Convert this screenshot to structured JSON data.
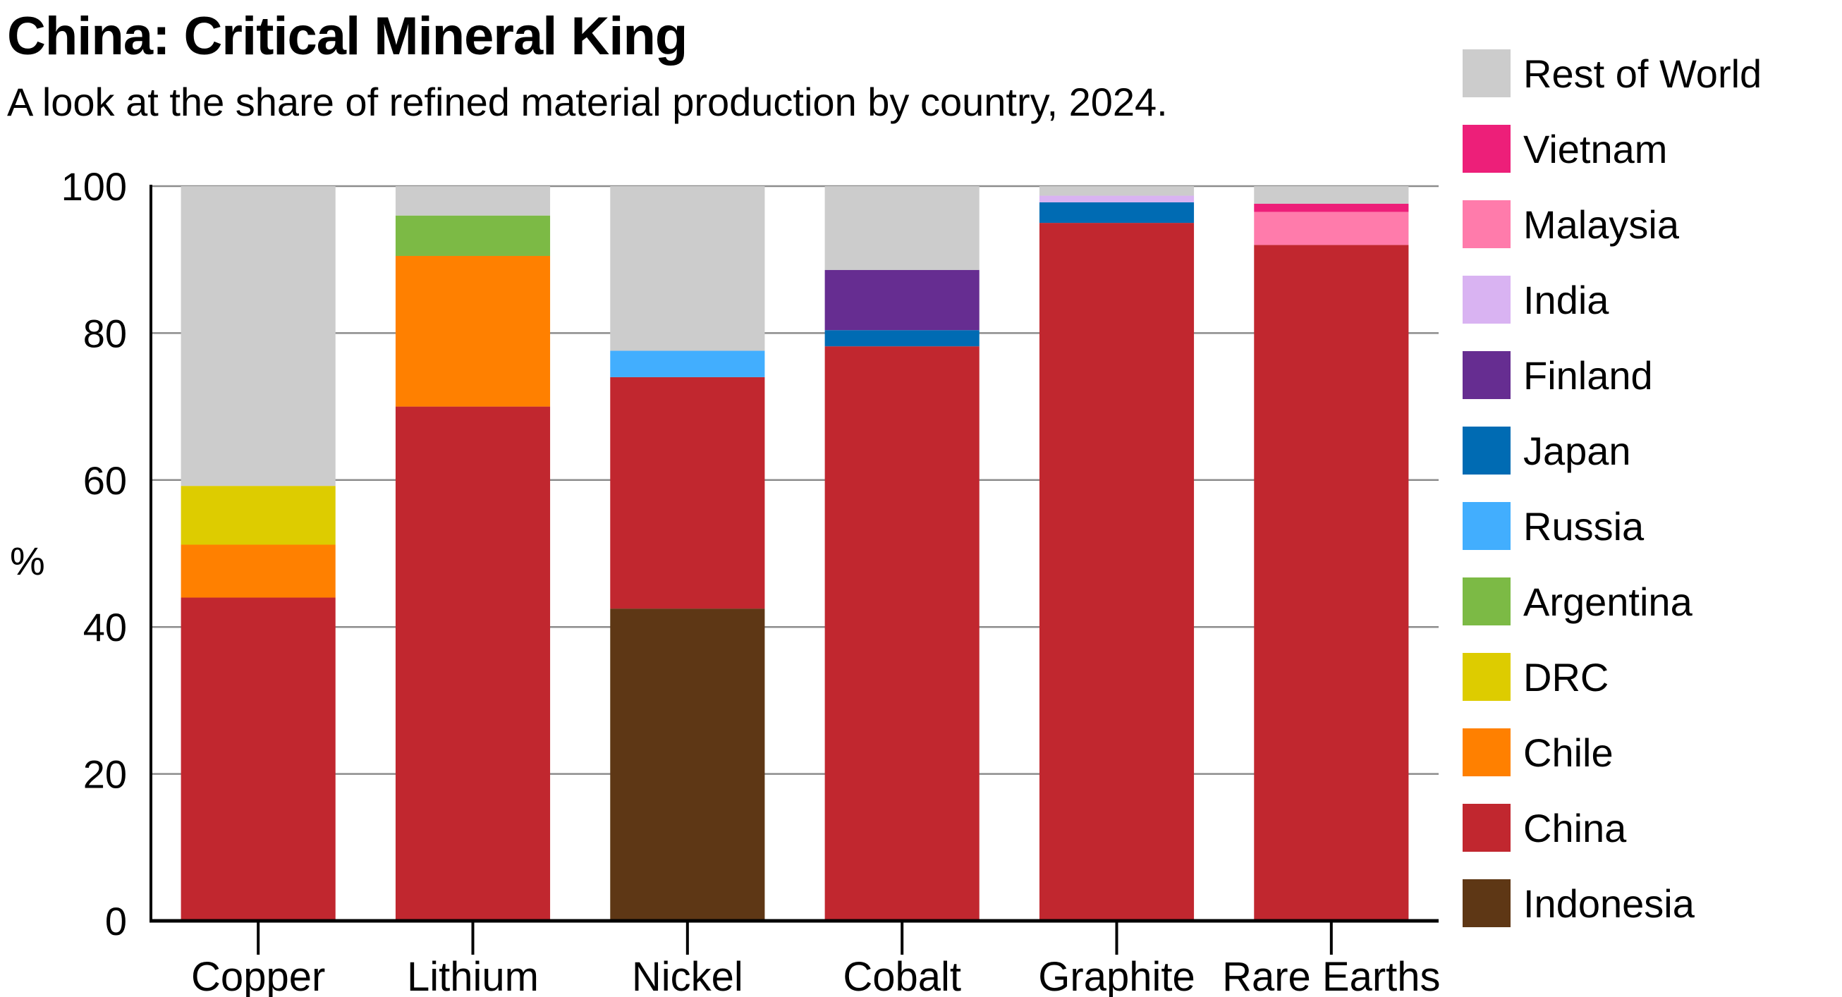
{
  "chart_data": {
    "type": "bar",
    "stacked": true,
    "title": "China: Critical Mineral King",
    "subtitle": "A look at the share of refined material production by country, 2024.",
    "xlabel": "",
    "ylabel": "%",
    "ylim": [
      0,
      100
    ],
    "yticks": [
      0,
      20,
      40,
      60,
      80,
      100
    ],
    "grid": true,
    "legend_position": "right",
    "categories": [
      "Copper",
      "Lithium",
      "Nickel",
      "Cobalt",
      "Graphite",
      "Rare Earths"
    ],
    "series": [
      {
        "name": "Indonesia",
        "color": "#5e3715",
        "values": [
          0,
          0,
          42.5,
          0,
          0,
          0
        ]
      },
      {
        "name": "China",
        "color": "#c1272f",
        "values": [
          44.0,
          70.0,
          31.5,
          78.2,
          95.0,
          92.0
        ]
      },
      {
        "name": "Chile",
        "color": "#ff8000",
        "values": [
          7.2,
          20.5,
          0,
          0,
          0,
          0
        ]
      },
      {
        "name": "DRC",
        "color": "#ddcc00",
        "values": [
          8.0,
          0,
          0,
          0,
          0,
          0
        ]
      },
      {
        "name": "Argentina",
        "color": "#7cba45",
        "values": [
          0,
          5.5,
          0,
          0,
          0,
          0
        ]
      },
      {
        "name": "Russia",
        "color": "#42aefe",
        "values": [
          0,
          0,
          3.6,
          0,
          0,
          0
        ]
      },
      {
        "name": "Japan",
        "color": "#006bb3",
        "values": [
          0,
          0,
          0,
          2.2,
          2.8,
          0
        ]
      },
      {
        "name": "Finland",
        "color": "#662d91",
        "values": [
          0,
          0,
          0,
          8.2,
          0,
          0
        ]
      },
      {
        "name": "India",
        "color": "#d9b3f2",
        "values": [
          0,
          0,
          0,
          0,
          0.9,
          0
        ]
      },
      {
        "name": "Malaysia",
        "color": "#ff7bab",
        "values": [
          0,
          0,
          0,
          0,
          0,
          4.5
        ]
      },
      {
        "name": "Vietnam",
        "color": "#ed1f79",
        "values": [
          0,
          0,
          0,
          0,
          0,
          1.1
        ]
      },
      {
        "name": "Rest of World",
        "color": "#cccccc",
        "values": [
          40.8,
          4.0,
          22.4,
          11.4,
          1.3,
          2.4
        ]
      }
    ],
    "legend_order": [
      "Rest of World",
      "Vietnam",
      "Malaysia",
      "India",
      "Finland",
      "Japan",
      "Russia",
      "Argentina",
      "DRC",
      "Chile",
      "China",
      "Indonesia"
    ]
  }
}
